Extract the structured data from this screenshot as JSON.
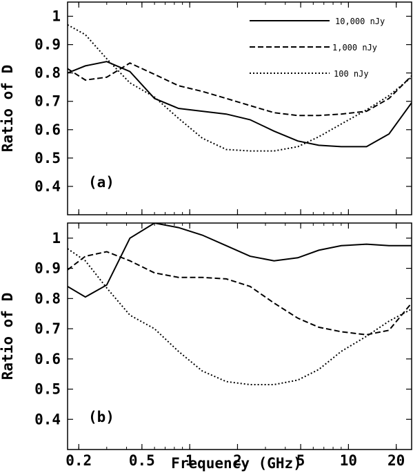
{
  "chart_data": [
    {
      "type": "line",
      "panel_label": "(a)",
      "ylabel": "Ratio of D",
      "xlabel": "",
      "xscale": "log",
      "xlim": [
        0.17,
        25
      ],
      "ylim": [
        0.3,
        1.05
      ],
      "xticks": [
        0.2,
        0.5,
        1,
        2,
        5,
        10,
        20
      ],
      "xtick_labels": [
        "",
        "",
        "",
        "",
        "",
        "",
        ""
      ],
      "yticks": [
        0.4,
        0.5,
        0.6,
        0.7,
        0.8,
        0.9,
        1
      ],
      "ytick_labels": [
        "0.4",
        "0.5",
        "0.6",
        "0.7",
        "0.8",
        "0.9",
        "1"
      ],
      "legend_position": "top-right",
      "series": [
        {
          "name": "10,000 nJy",
          "style": "solid",
          "x": [
            0.17,
            0.22,
            0.3,
            0.42,
            0.6,
            0.85,
            1.2,
            1.7,
            2.4,
            3.4,
            4.8,
            6.5,
            9,
            13,
            18,
            25
          ],
          "y": [
            0.8,
            0.825,
            0.84,
            0.805,
            0.71,
            0.675,
            0.665,
            0.655,
            0.635,
            0.595,
            0.56,
            0.545,
            0.54,
            0.54,
            0.585,
            0.695
          ]
        },
        {
          "name": "1,000 nJy",
          "style": "dashed",
          "x": [
            0.17,
            0.22,
            0.3,
            0.42,
            0.6,
            0.85,
            1.2,
            1.7,
            2.4,
            3.4,
            4.8,
            6.5,
            9,
            13,
            18,
            25
          ],
          "y": [
            0.815,
            0.775,
            0.785,
            0.835,
            0.795,
            0.755,
            0.735,
            0.71,
            0.685,
            0.66,
            0.65,
            0.65,
            0.655,
            0.665,
            0.71,
            0.79
          ]
        },
        {
          "name": "100 nJy",
          "style": "dotted",
          "x": [
            0.17,
            0.22,
            0.3,
            0.42,
            0.6,
            0.85,
            1.2,
            1.7,
            2.4,
            3.4,
            4.8,
            6.5,
            9,
            13,
            18,
            25
          ],
          "y": [
            0.97,
            0.935,
            0.85,
            0.765,
            0.715,
            0.64,
            0.57,
            0.53,
            0.525,
            0.525,
            0.54,
            0.575,
            0.62,
            0.67,
            0.72,
            0.785
          ]
        }
      ]
    },
    {
      "type": "line",
      "panel_label": "(b)",
      "ylabel": "Ratio of D",
      "xlabel": "Frequency (GHz)",
      "xscale": "log",
      "xlim": [
        0.17,
        25
      ],
      "ylim": [
        0.3,
        1.05
      ],
      "xticks": [
        0.2,
        0.5,
        1,
        2,
        5,
        10,
        20
      ],
      "xtick_labels": [
        "0.2",
        "0.5",
        "1",
        "2",
        "5",
        "10",
        "20"
      ],
      "yticks": [
        0.4,
        0.5,
        0.6,
        0.7,
        0.8,
        0.9,
        1
      ],
      "ytick_labels": [
        "0.4",
        "0.5",
        "0.6",
        "0.7",
        "0.8",
        "0.9",
        "1"
      ],
      "series": [
        {
          "style": "solid",
          "x": [
            0.17,
            0.22,
            0.3,
            0.42,
            0.6,
            0.85,
            1.2,
            1.7,
            2.4,
            3.4,
            4.8,
            6.5,
            9,
            13,
            18,
            25
          ],
          "y": [
            0.84,
            0.805,
            0.845,
            1.0,
            1.05,
            1.035,
            1.01,
            0.975,
            0.94,
            0.925,
            0.935,
            0.96,
            0.975,
            0.98,
            0.975,
            0.975
          ]
        },
        {
          "style": "dashed",
          "x": [
            0.17,
            0.22,
            0.3,
            0.42,
            0.6,
            0.85,
            1.2,
            1.7,
            2.4,
            3.4,
            4.8,
            6.5,
            9,
            13,
            18,
            25
          ],
          "y": [
            0.895,
            0.94,
            0.955,
            0.925,
            0.885,
            0.87,
            0.87,
            0.865,
            0.84,
            0.785,
            0.735,
            0.705,
            0.69,
            0.68,
            0.695,
            0.785
          ]
        },
        {
          "style": "dotted",
          "x": [
            0.17,
            0.22,
            0.3,
            0.42,
            0.6,
            0.85,
            1.2,
            1.7,
            2.4,
            3.4,
            4.8,
            6.5,
            9,
            13,
            18,
            25
          ],
          "y": [
            0.965,
            0.925,
            0.835,
            0.745,
            0.7,
            0.625,
            0.56,
            0.525,
            0.515,
            0.515,
            0.53,
            0.565,
            0.625,
            0.675,
            0.725,
            0.765
          ]
        }
      ]
    }
  ]
}
